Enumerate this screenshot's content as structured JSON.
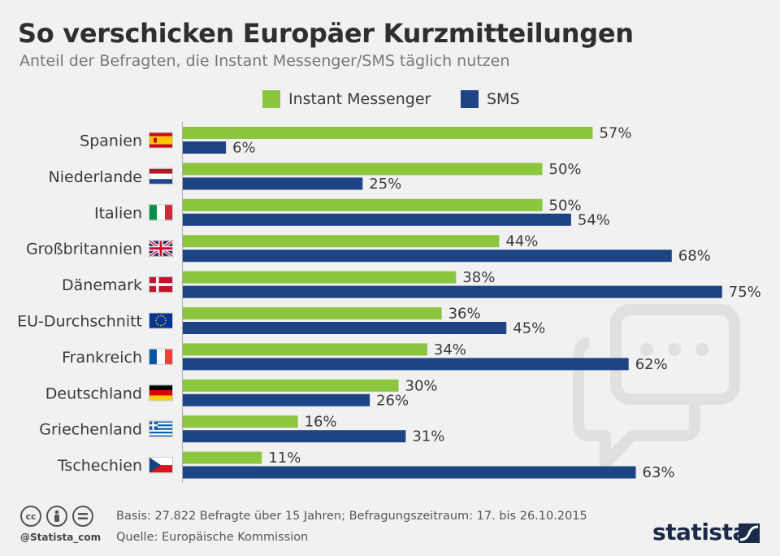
{
  "header": {
    "title": "So verschicken Europäer Kurzmitteilungen",
    "subtitle": "Anteil der Befragten, die Instant Messenger/SMS täglich nutzen"
  },
  "colors": {
    "instant_messenger": "#8cc63f",
    "sms": "#1e4486",
    "background": "#f1f1f1"
  },
  "chart_data": {
    "type": "bar",
    "orientation": "horizontal",
    "categories": [
      "Spanien",
      "Niederlande",
      "Italien",
      "Großbritannien",
      "Dänemark",
      "EU-Durchschnitt",
      "Frankreich",
      "Deutschland",
      "Griechenland",
      "Tschechien"
    ],
    "series": [
      {
        "name": "Instant Messenger",
        "values": [
          57,
          50,
          50,
          44,
          38,
          36,
          34,
          30,
          16,
          11
        ]
      },
      {
        "name": "SMS",
        "values": [
          6,
          25,
          54,
          68,
          75,
          45,
          62,
          26,
          31,
          63
        ]
      }
    ],
    "value_suffix": "%",
    "legend_position": "top",
    "grid": false,
    "flags": [
      "spain-flag-icon",
      "netherlands-flag-icon",
      "italy-flag-icon",
      "uk-flag-icon",
      "denmark-flag-icon",
      "eu-flag-icon",
      "france-flag-icon",
      "germany-flag-icon",
      "greece-flag-icon",
      "czech-flag-icon"
    ]
  },
  "footer": {
    "handle": "@Statista_com",
    "basis": "Basis: 27.822 Befragte über 15 Jahren; Befragungszeitraum: 17. bis 26.10.2015",
    "source": "Quelle: Europäische Kommission",
    "brand": "statista",
    "license_icons": [
      "cc-icon",
      "attribution-icon",
      "no-derivatives-icon"
    ]
  }
}
